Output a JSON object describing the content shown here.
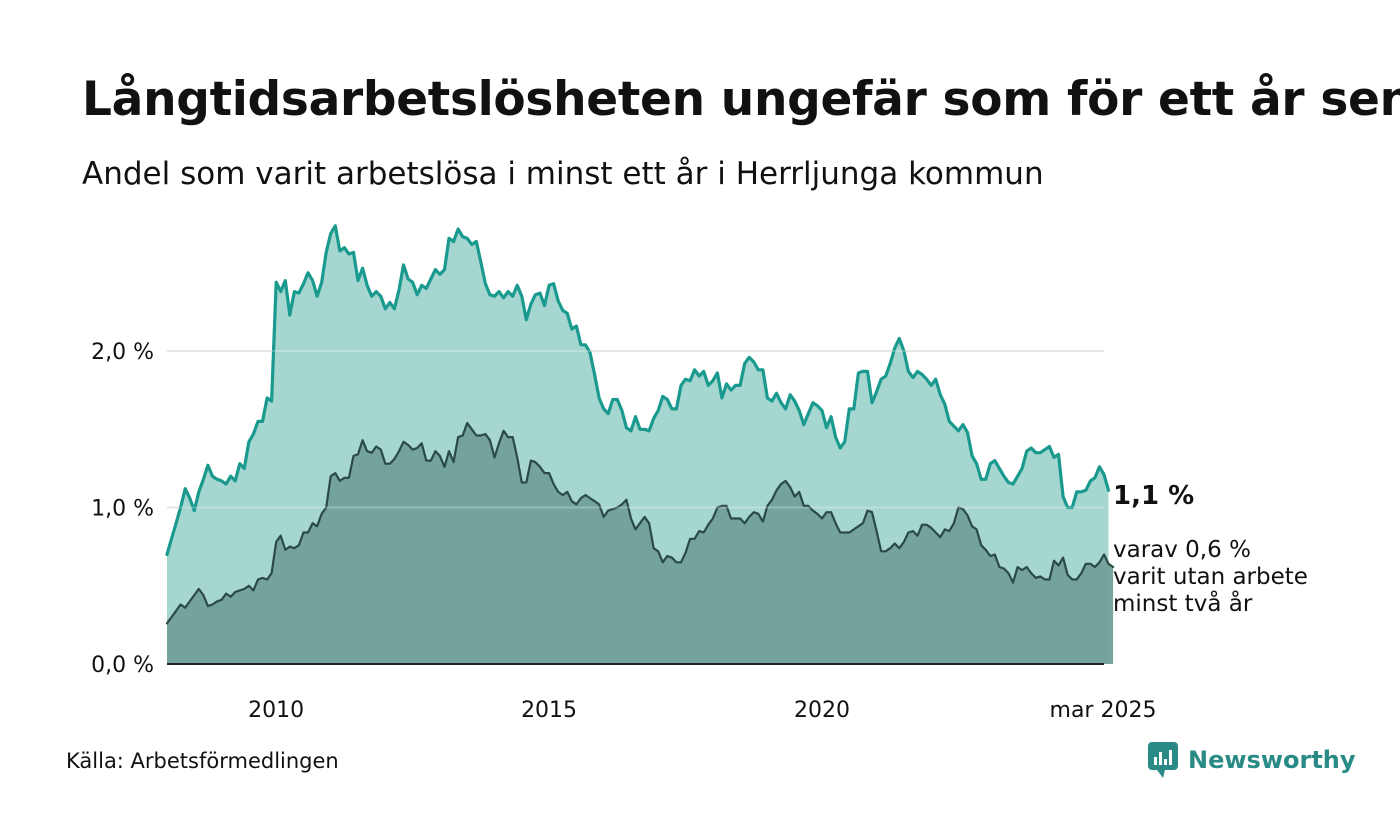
{
  "title": "Långtidsarbetslösheten ungefär som för ett år sen",
  "subtitle": "Andel som varit arbetslösa i minst ett år i Herrljunga kommun",
  "source": "Källa: Arbetsförmedlingen",
  "brand": {
    "name": "Newsworthy",
    "icon": "newsworthy-logo-icon",
    "color": "#2a8a86"
  },
  "annotation": {
    "main_value": "1,1 %",
    "sub_lines": [
      "varav 0,6 %",
      "varit utan arbete",
      "minst två år"
    ]
  },
  "colors": {
    "series1_line": "#1a9a8e",
    "series1_fill": "#a5d6d0",
    "series2_line": "#2b4a45",
    "series2_fill": "#6f9e97",
    "grid": "#dddddd",
    "baseline": "#222222"
  },
  "chart_data": {
    "type": "area",
    "title": "Långtidsarbetslösheten ungefär som för ett år sen",
    "subtitle": "Andel som varit arbetslösa i minst ett år i Herrljunga kommun",
    "xlabel": "",
    "ylabel": "",
    "x_start": "2008-01",
    "x_end": "2025-03",
    "x_frequency": "monthly",
    "x_ticks": [
      {
        "x": "2010-01",
        "label": "2010"
      },
      {
        "x": "2015-01",
        "label": "2015"
      },
      {
        "x": "2020-01",
        "label": "2020"
      },
      {
        "x": "2025-03",
        "label": "mar 2025"
      }
    ],
    "y_ticks": [
      {
        "value": 0,
        "label": "0,0 %"
      },
      {
        "value": 1,
        "label": "1,0 %"
      },
      {
        "value": 2,
        "label": "2,0 %"
      }
    ],
    "ylim": [
      0,
      2.85
    ],
    "grid": true,
    "series": [
      {
        "values": [
          0.7,
          0.8,
          0.9,
          1.0,
          1.12,
          1.06,
          0.98,
          1.1,
          1.18,
          1.27,
          1.2,
          1.18,
          1.17,
          1.15,
          1.2,
          1.17,
          1.28,
          1.25,
          1.42,
          1.47,
          1.55,
          1.55,
          1.7,
          1.68,
          2.44,
          2.38,
          2.45,
          2.23,
          2.38,
          2.37,
          2.43,
          2.5,
          2.45,
          2.35,
          2.44,
          2.63,
          2.75,
          2.8,
          2.64,
          2.66,
          2.62,
          2.63,
          2.45,
          2.53,
          2.42,
          2.35,
          2.38,
          2.35,
          2.27,
          2.31,
          2.27,
          2.39,
          2.55,
          2.46,
          2.44,
          2.36,
          2.42,
          2.4,
          2.46,
          2.52,
          2.49,
          2.52,
          2.72,
          2.7,
          2.78,
          2.73,
          2.72,
          2.68,
          2.7,
          2.57,
          2.43,
          2.36,
          2.35,
          2.38,
          2.34,
          2.38,
          2.35,
          2.42,
          2.35,
          2.2,
          2.3,
          2.36,
          2.37,
          2.29,
          2.42,
          2.43,
          2.32,
          2.26,
          2.24,
          2.14,
          2.16,
          2.04,
          2.04,
          1.99,
          1.85,
          1.7,
          1.63,
          1.6,
          1.69,
          1.69,
          1.62,
          1.51,
          1.49,
          1.58,
          1.5,
          1.5,
          1.49,
          1.57,
          1.62,
          1.71,
          1.69,
          1.63,
          1.63,
          1.78,
          1.82,
          1.81,
          1.88,
          1.84,
          1.87,
          1.78,
          1.81,
          1.86,
          1.7,
          1.79,
          1.75,
          1.78,
          1.78,
          1.92,
          1.96,
          1.93,
          1.88,
          1.88,
          1.7,
          1.68,
          1.73,
          1.67,
          1.63,
          1.72,
          1.68,
          1.62,
          1.53,
          1.6,
          1.67,
          1.65,
          1.62,
          1.51,
          1.58,
          1.45,
          1.38,
          1.42,
          1.63,
          1.63,
          1.86,
          1.87,
          1.87,
          1.67,
          1.74,
          1.82,
          1.84,
          1.92,
          2.02,
          2.08,
          2.0,
          1.87,
          1.83,
          1.87,
          1.85,
          1.82,
          1.78,
          1.82,
          1.72,
          1.66,
          1.55,
          1.52,
          1.49,
          1.53,
          1.48,
          1.33,
          1.28,
          1.18,
          1.18,
          1.28,
          1.3,
          1.25,
          1.2,
          1.16,
          1.15,
          1.2,
          1.25,
          1.36,
          1.38,
          1.35,
          1.35,
          1.37,
          1.39,
          1.32,
          1.34,
          1.07,
          1.0,
          1.0,
          1.1,
          1.1,
          1.11,
          1.17,
          1.19,
          1.26,
          1.21,
          1.11
        ]
      },
      {
        "values": [
          0.26,
          0.3,
          0.34,
          0.38,
          0.36,
          0.4,
          0.44,
          0.48,
          0.44,
          0.37,
          0.38,
          0.4,
          0.41,
          0.45,
          0.43,
          0.46,
          0.47,
          0.48,
          0.5,
          0.47,
          0.54,
          0.55,
          0.54,
          0.58,
          0.78,
          0.82,
          0.73,
          0.75,
          0.74,
          0.76,
          0.84,
          0.84,
          0.9,
          0.88,
          0.96,
          1.0,
          1.2,
          1.22,
          1.17,
          1.19,
          1.19,
          1.33,
          1.34,
          1.43,
          1.36,
          1.35,
          1.39,
          1.37,
          1.28,
          1.28,
          1.31,
          1.36,
          1.42,
          1.4,
          1.37,
          1.38,
          1.41,
          1.3,
          1.3,
          1.36,
          1.33,
          1.26,
          1.36,
          1.29,
          1.45,
          1.46,
          1.54,
          1.5,
          1.46,
          1.46,
          1.47,
          1.43,
          1.32,
          1.41,
          1.49,
          1.45,
          1.45,
          1.32,
          1.16,
          1.16,
          1.3,
          1.29,
          1.26,
          1.22,
          1.22,
          1.15,
          1.1,
          1.08,
          1.1,
          1.04,
          1.02,
          1.06,
          1.08,
          1.06,
          1.04,
          1.02,
          0.94,
          0.98,
          0.99,
          1.0,
          1.02,
          1.05,
          0.93,
          0.86,
          0.9,
          0.94,
          0.9,
          0.74,
          0.72,
          0.65,
          0.69,
          0.68,
          0.65,
          0.65,
          0.71,
          0.8,
          0.8,
          0.85,
          0.84,
          0.89,
          0.93,
          1.0,
          1.01,
          1.01,
          0.93,
          0.93,
          0.93,
          0.9,
          0.94,
          0.97,
          0.96,
          0.91,
          1.01,
          1.05,
          1.11,
          1.15,
          1.17,
          1.13,
          1.07,
          1.1,
          1.01,
          1.01,
          0.98,
          0.96,
          0.93,
          0.97,
          0.97,
          0.9,
          0.84,
          0.84,
          0.84,
          0.86,
          0.88,
          0.9,
          0.98,
          0.97,
          0.85,
          0.72,
          0.72,
          0.74,
          0.77,
          0.74,
          0.78,
          0.84,
          0.85,
          0.82,
          0.89,
          0.89,
          0.87,
          0.84,
          0.81,
          0.86,
          0.85,
          0.9,
          1.0,
          0.99,
          0.95,
          0.88,
          0.86,
          0.76,
          0.73,
          0.69,
          0.7,
          0.62,
          0.61,
          0.58,
          0.52,
          0.62,
          0.6,
          0.62,
          0.58,
          0.55,
          0.56,
          0.54,
          0.54,
          0.66,
          0.63,
          0.68,
          0.57,
          0.54,
          0.54,
          0.58,
          0.64,
          0.64,
          0.62,
          0.65,
          0.7,
          0.64,
          0.62
        ]
      }
    ]
  }
}
